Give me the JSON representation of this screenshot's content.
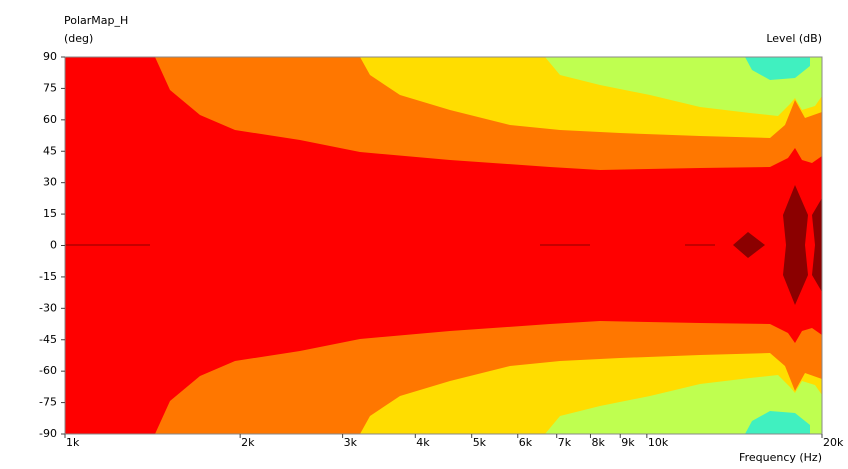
{
  "chart_data": {
    "type": "contour",
    "title": "PolarMap_H",
    "y_label": "(deg)",
    "level_label": "Level  (dB)",
    "x_label": "Frequency  (Hz)",
    "xscale": "log",
    "xlim": [
      1000,
      20000
    ],
    "ylim": [
      -90,
      90
    ],
    "xticks": [
      {
        "value": 1000,
        "label": "1k"
      },
      {
        "value": 2000,
        "label": "2k"
      },
      {
        "value": 3000,
        "label": "3k"
      },
      {
        "value": 4000,
        "label": "4k"
      },
      {
        "value": 5000,
        "label": "5k"
      },
      {
        "value": 6000,
        "label": "6k"
      },
      {
        "value": 7000,
        "label": "7k"
      },
      {
        "value": 8000,
        "label": "8k"
      },
      {
        "value": 9000,
        "label": "9k"
      },
      {
        "value": 10000,
        "label": "10k"
      },
      {
        "value": 20000,
        "label": "20k"
      }
    ],
    "yticks": [
      90,
      75,
      60,
      45,
      30,
      15,
      0,
      -15,
      -30,
      -45,
      -60,
      -75,
      -90
    ],
    "level_colors": [
      "#8b0000",
      "#ff0000",
      "#ff7700",
      "#ffdd00",
      "#bfff50",
      "#40f0c0"
    ]
  }
}
